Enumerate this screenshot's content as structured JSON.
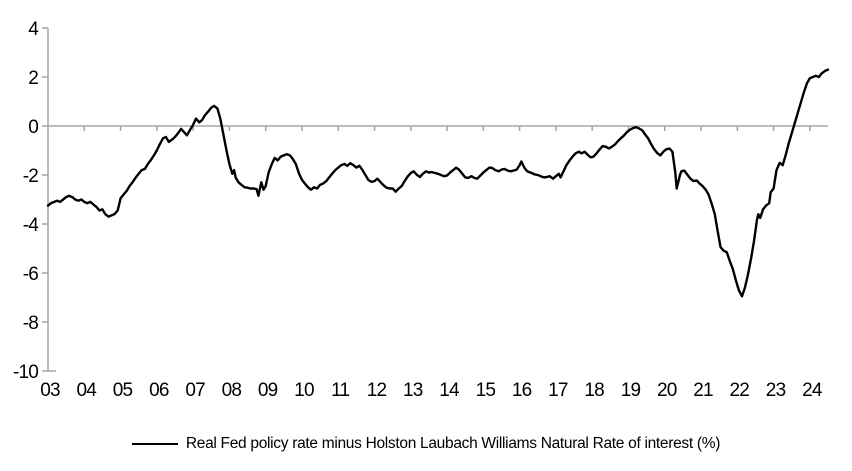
{
  "chart_data": {
    "type": "line",
    "title": "",
    "xlabel": "",
    "ylabel": "",
    "x_range": [
      2003,
      2024.5
    ],
    "y_range": [
      -10,
      4
    ],
    "grid": "zero-line-only",
    "legend_position": "bottom-center",
    "axis_color": "#a6a6a6",
    "line_color": "#000000",
    "y_ticks": {
      "values": [
        4,
        2,
        0,
        -2,
        -4,
        -6,
        -8,
        -10
      ],
      "labels": [
        "4",
        "2",
        "0",
        "-2",
        "-4",
        "-6",
        "-8",
        "-10"
      ]
    },
    "x_ticks": {
      "values": [
        2003,
        2004,
        2005,
        2006,
        2007,
        2008,
        2009,
        2010,
        2011,
        2012,
        2013,
        2014,
        2015,
        2016,
        2017,
        2018,
        2019,
        2020,
        2021,
        2022,
        2023,
        2024
      ],
      "labels": [
        "03",
        "04",
        "05",
        "06",
        "07",
        "08",
        "09",
        "10",
        "11",
        "12",
        "13",
        "14",
        "15",
        "16",
        "17",
        "18",
        "19",
        "20",
        "21",
        "22",
        "23",
        "24"
      ]
    },
    "series": [
      {
        "name": "Real Fed policy rate minus Holston Laubach Williams Natural Rate of interest (%)",
        "color": "#000000",
        "points": [
          [
            2003,
            -3.25
          ],
          [
            2003.08,
            -3.15
          ],
          [
            2003.17,
            -3.1
          ],
          [
            2003.25,
            -3.05
          ],
          [
            2003.33,
            -3.1
          ],
          [
            2003.42,
            -3
          ],
          [
            2003.5,
            -2.9
          ],
          [
            2003.58,
            -2.85
          ],
          [
            2003.67,
            -2.9
          ],
          [
            2003.75,
            -3
          ],
          [
            2003.83,
            -3.05
          ],
          [
            2003.92,
            -3
          ],
          [
            2004,
            -3.1
          ],
          [
            2004.08,
            -3.15
          ],
          [
            2004.17,
            -3.1
          ],
          [
            2004.25,
            -3.2
          ],
          [
            2004.33,
            -3.3
          ],
          [
            2004.42,
            -3.45
          ],
          [
            2004.5,
            -3.4
          ],
          [
            2004.58,
            -3.6
          ],
          [
            2004.67,
            -3.7
          ],
          [
            2004.75,
            -3.65
          ],
          [
            2004.83,
            -3.6
          ],
          [
            2004.92,
            -3.45
          ],
          [
            2005,
            -2.95
          ],
          [
            2005.08,
            -2.8
          ],
          [
            2005.17,
            -2.65
          ],
          [
            2005.25,
            -2.45
          ],
          [
            2005.33,
            -2.3
          ],
          [
            2005.42,
            -2.1
          ],
          [
            2005.5,
            -1.95
          ],
          [
            2005.58,
            -1.8
          ],
          [
            2005.67,
            -1.75
          ],
          [
            2005.75,
            -1.55
          ],
          [
            2005.83,
            -1.4
          ],
          [
            2005.92,
            -1.2
          ],
          [
            2006,
            -1
          ],
          [
            2006.08,
            -0.75
          ],
          [
            2006.17,
            -0.5
          ],
          [
            2006.25,
            -0.45
          ],
          [
            2006.33,
            -0.65
          ],
          [
            2006.42,
            -0.55
          ],
          [
            2006.5,
            -0.45
          ],
          [
            2006.58,
            -0.3
          ],
          [
            2006.67,
            -0.12
          ],
          [
            2006.75,
            -0.25
          ],
          [
            2006.83,
            -0.38
          ],
          [
            2006.92,
            -0.15
          ],
          [
            2007,
            0.05
          ],
          [
            2007.08,
            0.3
          ],
          [
            2007.17,
            0.15
          ],
          [
            2007.25,
            0.25
          ],
          [
            2007.33,
            0.45
          ],
          [
            2007.42,
            0.6
          ],
          [
            2007.5,
            0.75
          ],
          [
            2007.58,
            0.82
          ],
          [
            2007.67,
            0.72
          ],
          [
            2007.75,
            0.3
          ],
          [
            2007.83,
            -0.3
          ],
          [
            2007.92,
            -1
          ],
          [
            2008,
            -1.55
          ],
          [
            2008.08,
            -1.95
          ],
          [
            2008.13,
            -1.8
          ],
          [
            2008.17,
            -2.1
          ],
          [
            2008.25,
            -2.3
          ],
          [
            2008.33,
            -2.4
          ],
          [
            2008.42,
            -2.5
          ],
          [
            2008.5,
            -2.52
          ],
          [
            2008.58,
            -2.55
          ],
          [
            2008.67,
            -2.55
          ],
          [
            2008.75,
            -2.58
          ],
          [
            2008.8,
            -2.85
          ],
          [
            2008.88,
            -2.3
          ],
          [
            2008.94,
            -2.6
          ],
          [
            2009,
            -2.45
          ],
          [
            2009.08,
            -1.9
          ],
          [
            2009.17,
            -1.55
          ],
          [
            2009.25,
            -1.3
          ],
          [
            2009.33,
            -1.4
          ],
          [
            2009.42,
            -1.25
          ],
          [
            2009.5,
            -1.2
          ],
          [
            2009.58,
            -1.15
          ],
          [
            2009.67,
            -1.2
          ],
          [
            2009.75,
            -1.35
          ],
          [
            2009.83,
            -1.55
          ],
          [
            2009.92,
            -1.95
          ],
          [
            2010,
            -2.2
          ],
          [
            2010.08,
            -2.35
          ],
          [
            2010.17,
            -2.5
          ],
          [
            2010.25,
            -2.6
          ],
          [
            2010.33,
            -2.5
          ],
          [
            2010.42,
            -2.55
          ],
          [
            2010.5,
            -2.4
          ],
          [
            2010.58,
            -2.35
          ],
          [
            2010.67,
            -2.25
          ],
          [
            2010.75,
            -2.1
          ],
          [
            2010.83,
            -1.95
          ],
          [
            2010.92,
            -1.8
          ],
          [
            2011,
            -1.7
          ],
          [
            2011.08,
            -1.6
          ],
          [
            2011.17,
            -1.55
          ],
          [
            2011.25,
            -1.63
          ],
          [
            2011.33,
            -1.52
          ],
          [
            2011.42,
            -1.6
          ],
          [
            2011.5,
            -1.7
          ],
          [
            2011.58,
            -1.62
          ],
          [
            2011.67,
            -1.8
          ],
          [
            2011.75,
            -2
          ],
          [
            2011.83,
            -2.2
          ],
          [
            2011.92,
            -2.28
          ],
          [
            2012,
            -2.25
          ],
          [
            2012.08,
            -2.15
          ],
          [
            2012.17,
            -2.3
          ],
          [
            2012.25,
            -2.42
          ],
          [
            2012.33,
            -2.52
          ],
          [
            2012.42,
            -2.55
          ],
          [
            2012.5,
            -2.55
          ],
          [
            2012.58,
            -2.68
          ],
          [
            2012.67,
            -2.55
          ],
          [
            2012.75,
            -2.45
          ],
          [
            2012.83,
            -2.25
          ],
          [
            2012.92,
            -2.05
          ],
          [
            2013,
            -1.92
          ],
          [
            2013.08,
            -1.85
          ],
          [
            2013.17,
            -2
          ],
          [
            2013.25,
            -2.08
          ],
          [
            2013.33,
            -1.95
          ],
          [
            2013.42,
            -1.85
          ],
          [
            2013.5,
            -1.9
          ],
          [
            2013.58,
            -1.88
          ],
          [
            2013.67,
            -1.92
          ],
          [
            2013.75,
            -1.95
          ],
          [
            2013.83,
            -2
          ],
          [
            2013.92,
            -2.05
          ],
          [
            2014,
            -2.02
          ],
          [
            2014.08,
            -1.9
          ],
          [
            2014.17,
            -1.8
          ],
          [
            2014.25,
            -1.7
          ],
          [
            2014.33,
            -1.78
          ],
          [
            2014.42,
            -1.95
          ],
          [
            2014.5,
            -2.1
          ],
          [
            2014.58,
            -2.12
          ],
          [
            2014.67,
            -2.05
          ],
          [
            2014.75,
            -2.12
          ],
          [
            2014.83,
            -2.15
          ],
          [
            2014.92,
            -2.02
          ],
          [
            2015,
            -1.9
          ],
          [
            2015.08,
            -1.8
          ],
          [
            2015.17,
            -1.7
          ],
          [
            2015.25,
            -1.72
          ],
          [
            2015.33,
            -1.8
          ],
          [
            2015.42,
            -1.85
          ],
          [
            2015.5,
            -1.78
          ],
          [
            2015.58,
            -1.75
          ],
          [
            2015.67,
            -1.82
          ],
          [
            2015.75,
            -1.85
          ],
          [
            2015.83,
            -1.82
          ],
          [
            2015.92,
            -1.78
          ],
          [
            2016,
            -1.6
          ],
          [
            2016.05,
            -1.45
          ],
          [
            2016.13,
            -1.7
          ],
          [
            2016.21,
            -1.85
          ],
          [
            2016.33,
            -1.92
          ],
          [
            2016.42,
            -1.98
          ],
          [
            2016.5,
            -2
          ],
          [
            2016.58,
            -2.05
          ],
          [
            2016.67,
            -2.1
          ],
          [
            2016.75,
            -2.08
          ],
          [
            2016.83,
            -2.05
          ],
          [
            2016.92,
            -2.15
          ],
          [
            2017,
            -2.05
          ],
          [
            2017.08,
            -1.95
          ],
          [
            2017.13,
            -2.1
          ],
          [
            2017.21,
            -1.85
          ],
          [
            2017.29,
            -1.6
          ],
          [
            2017.38,
            -1.4
          ],
          [
            2017.46,
            -1.25
          ],
          [
            2017.54,
            -1.12
          ],
          [
            2017.63,
            -1.05
          ],
          [
            2017.71,
            -1.12
          ],
          [
            2017.79,
            -1.05
          ],
          [
            2017.88,
            -1.18
          ],
          [
            2017.96,
            -1.28
          ],
          [
            2018.04,
            -1.25
          ],
          [
            2018.13,
            -1.1
          ],
          [
            2018.21,
            -0.95
          ],
          [
            2018.29,
            -0.82
          ],
          [
            2018.38,
            -0.85
          ],
          [
            2018.46,
            -0.92
          ],
          [
            2018.54,
            -0.85
          ],
          [
            2018.63,
            -0.75
          ],
          [
            2018.71,
            -0.62
          ],
          [
            2018.79,
            -0.5
          ],
          [
            2018.88,
            -0.38
          ],
          [
            2018.96,
            -0.25
          ],
          [
            2019.04,
            -0.15
          ],
          [
            2019.13,
            -0.08
          ],
          [
            2019.21,
            -0.05
          ],
          [
            2019.29,
            -0.1
          ],
          [
            2019.38,
            -0.18
          ],
          [
            2019.46,
            -0.35
          ],
          [
            2019.54,
            -0.5
          ],
          [
            2019.63,
            -0.75
          ],
          [
            2019.71,
            -0.95
          ],
          [
            2019.79,
            -1.1
          ],
          [
            2019.88,
            -1.2
          ],
          [
            2019.96,
            -1.05
          ],
          [
            2020.04,
            -0.95
          ],
          [
            2020.13,
            -0.92
          ],
          [
            2020.21,
            -1.05
          ],
          [
            2020.29,
            -1.9
          ],
          [
            2020.33,
            -2.55
          ],
          [
            2020.42,
            -2
          ],
          [
            2020.46,
            -1.85
          ],
          [
            2020.54,
            -1.82
          ],
          [
            2020.63,
            -2
          ],
          [
            2020.71,
            -2.15
          ],
          [
            2020.79,
            -2.25
          ],
          [
            2020.88,
            -2.22
          ],
          [
            2020.96,
            -2.35
          ],
          [
            2021.04,
            -2.45
          ],
          [
            2021.13,
            -2.6
          ],
          [
            2021.21,
            -2.8
          ],
          [
            2021.29,
            -3.15
          ],
          [
            2021.38,
            -3.6
          ],
          [
            2021.46,
            -4.3
          ],
          [
            2021.54,
            -4.95
          ],
          [
            2021.63,
            -5.1
          ],
          [
            2021.71,
            -5.15
          ],
          [
            2021.79,
            -5.5
          ],
          [
            2021.88,
            -5.85
          ],
          [
            2021.96,
            -6.3
          ],
          [
            2022.04,
            -6.7
          ],
          [
            2022.13,
            -6.95
          ],
          [
            2022.21,
            -6.6
          ],
          [
            2022.29,
            -6.1
          ],
          [
            2022.38,
            -5.4
          ],
          [
            2022.46,
            -4.7
          ],
          [
            2022.54,
            -3.85
          ],
          [
            2022.58,
            -3.6
          ],
          [
            2022.63,
            -3.75
          ],
          [
            2022.71,
            -3.4
          ],
          [
            2022.79,
            -3.25
          ],
          [
            2022.88,
            -3.15
          ],
          [
            2022.92,
            -2.7
          ],
          [
            2023,
            -2.55
          ],
          [
            2023.08,
            -1.8
          ],
          [
            2023.17,
            -1.5
          ],
          [
            2023.25,
            -1.6
          ],
          [
            2023.33,
            -1.2
          ],
          [
            2023.42,
            -0.7
          ],
          [
            2023.5,
            -0.3
          ],
          [
            2023.58,
            0.1
          ],
          [
            2023.67,
            0.55
          ],
          [
            2023.75,
            0.95
          ],
          [
            2023.83,
            1.35
          ],
          [
            2023.92,
            1.75
          ],
          [
            2024,
            1.95
          ],
          [
            2024.08,
            2
          ],
          [
            2024.17,
            2.05
          ],
          [
            2024.25,
            2
          ],
          [
            2024.33,
            2.15
          ],
          [
            2024.42,
            2.25
          ],
          [
            2024.5,
            2.3
          ]
        ]
      }
    ]
  }
}
